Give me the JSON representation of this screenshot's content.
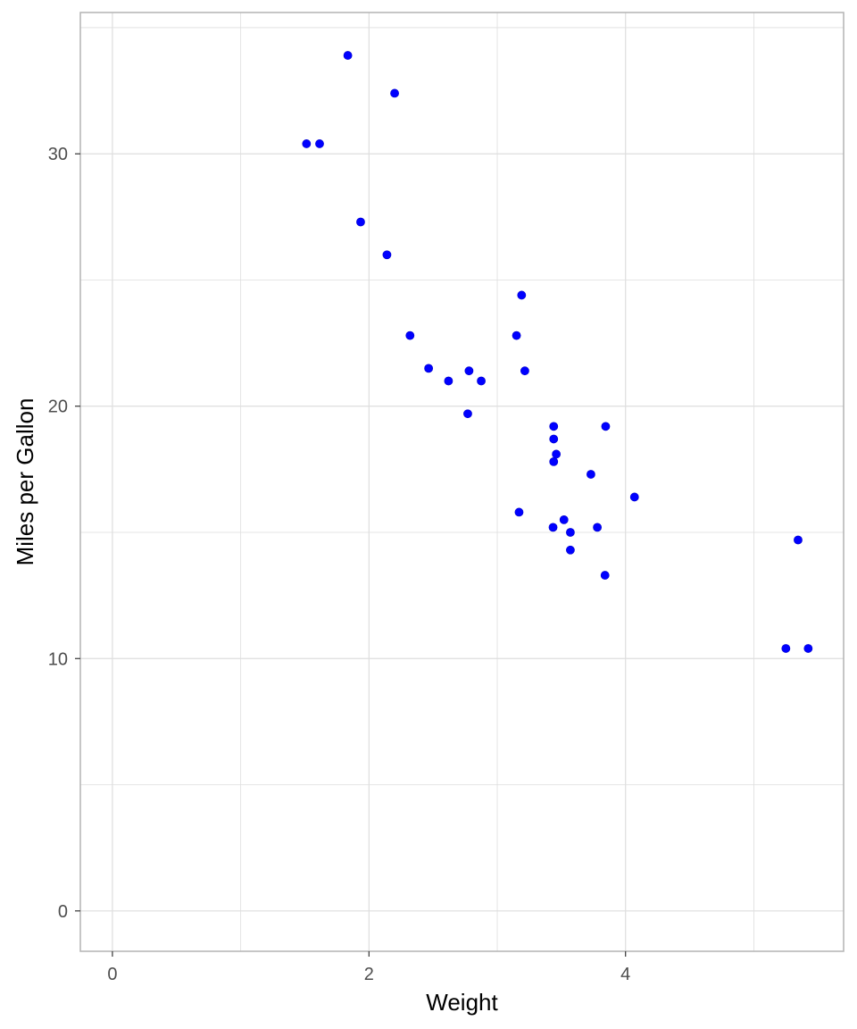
{
  "chart_data": {
    "type": "scatter",
    "title": "",
    "xlabel": "Weight",
    "ylabel": "Miles per Gallon",
    "xlim": [
      -0.25,
      5.7
    ],
    "ylim": [
      -1.6,
      35.6
    ],
    "x_ticks": [
      0,
      2,
      4
    ],
    "x_tick_labels": [
      "0",
      "2",
      "4"
    ],
    "y_ticks": [
      0,
      10,
      20,
      30
    ],
    "y_tick_labels": [
      "0",
      "10",
      "20",
      "30"
    ],
    "grid": true,
    "legend": "none",
    "point_color": "#0000ff",
    "grid_color": "#dedede",
    "panel_border_color": "#b3b3b3",
    "points": [
      {
        "x": 2.62,
        "y": 21.0
      },
      {
        "x": 2.875,
        "y": 21.0
      },
      {
        "x": 2.32,
        "y": 22.8
      },
      {
        "x": 3.215,
        "y": 21.4
      },
      {
        "x": 3.44,
        "y": 18.7
      },
      {
        "x": 3.46,
        "y": 18.1
      },
      {
        "x": 3.57,
        "y": 14.3
      },
      {
        "x": 3.19,
        "y": 24.4
      },
      {
        "x": 3.15,
        "y": 22.8
      },
      {
        "x": 3.44,
        "y": 19.2
      },
      {
        "x": 3.44,
        "y": 17.8
      },
      {
        "x": 4.07,
        "y": 16.4
      },
      {
        "x": 3.73,
        "y": 17.3
      },
      {
        "x": 3.78,
        "y": 15.2
      },
      {
        "x": 5.25,
        "y": 10.4
      },
      {
        "x": 5.424,
        "y": 10.4
      },
      {
        "x": 5.345,
        "y": 14.7
      },
      {
        "x": 2.2,
        "y": 32.4
      },
      {
        "x": 1.615,
        "y": 30.4
      },
      {
        "x": 1.835,
        "y": 33.9
      },
      {
        "x": 2.465,
        "y": 21.5
      },
      {
        "x": 3.52,
        "y": 15.5
      },
      {
        "x": 3.435,
        "y": 15.2
      },
      {
        "x": 3.84,
        "y": 13.3
      },
      {
        "x": 3.845,
        "y": 19.2
      },
      {
        "x": 1.935,
        "y": 27.3
      },
      {
        "x": 2.14,
        "y": 26.0
      },
      {
        "x": 1.513,
        "y": 30.4
      },
      {
        "x": 3.17,
        "y": 15.8
      },
      {
        "x": 2.77,
        "y": 19.7
      },
      {
        "x": 3.57,
        "y": 15.0
      },
      {
        "x": 2.78,
        "y": 21.4
      }
    ]
  }
}
